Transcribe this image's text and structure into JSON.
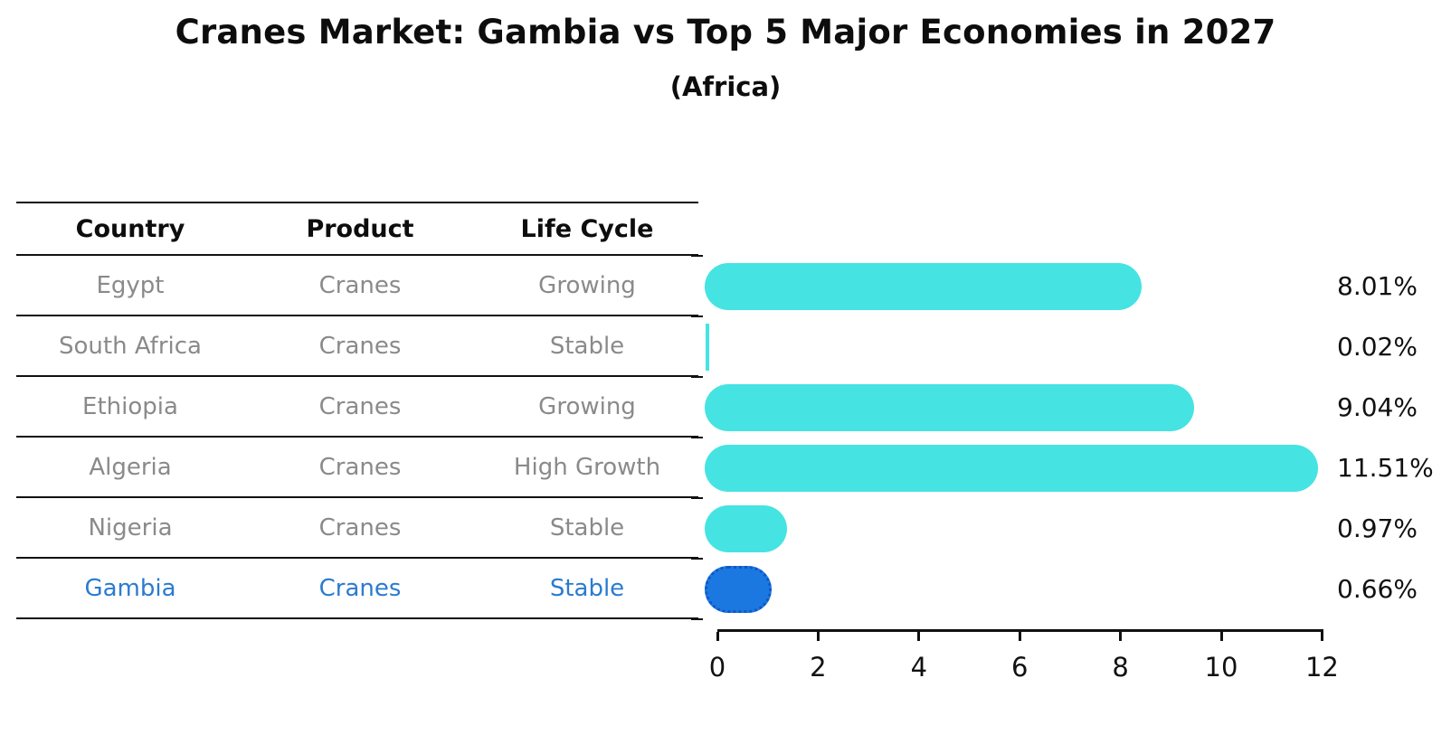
{
  "title": "Cranes Market: Gambia vs Top 5 Major Economies in 2027",
  "subtitle": "(Africa)",
  "table": {
    "headers": {
      "country": "Country",
      "product": "Product",
      "life_cycle": "Life Cycle"
    },
    "rows": [
      {
        "country": "Egypt",
        "product": "Cranes",
        "life_cycle": "Growing",
        "highlight": false
      },
      {
        "country": "South Africa",
        "product": "Cranes",
        "life_cycle": "Stable",
        "highlight": false
      },
      {
        "country": "Ethiopia",
        "product": "Cranes",
        "life_cycle": "Growing",
        "highlight": false
      },
      {
        "country": "Algeria",
        "product": "Cranes",
        "life_cycle": "High Growth",
        "highlight": false
      },
      {
        "country": "Nigeria",
        "product": "Cranes",
        "life_cycle": "Stable",
        "highlight": false
      },
      {
        "country": "Gambia",
        "product": "Cranes",
        "life_cycle": "Stable",
        "highlight": true
      }
    ]
  },
  "chart_data": {
    "type": "bar",
    "orientation": "horizontal",
    "title": "Cranes Market: Gambia vs Top 5 Major Economies in 2027 (Africa)",
    "categories": [
      "Egypt",
      "South Africa",
      "Ethiopia",
      "Algeria",
      "Nigeria",
      "Gambia"
    ],
    "values": [
      8.01,
      0.02,
      9.04,
      11.51,
      0.97,
      0.66
    ],
    "value_labels": [
      "8.01%",
      "0.02%",
      "9.04%",
      "11.51%",
      "0.97%",
      "0.66%"
    ],
    "unit": "%",
    "xlim": [
      0,
      12
    ],
    "xticks": [
      0,
      2,
      4,
      6,
      8,
      10,
      12
    ],
    "grid": false,
    "legend": false,
    "highlight_category": "Gambia",
    "bar_style": "rounded-pill, value labels right of plot"
  },
  "colors": {
    "bar_color": "#46e3e3",
    "highlight_bar_color": "#1b78e0",
    "highlight_border_color": "#0f57c8",
    "highlight_text": "#2b7bcf",
    "cell_text": "#8a8a8a"
  }
}
